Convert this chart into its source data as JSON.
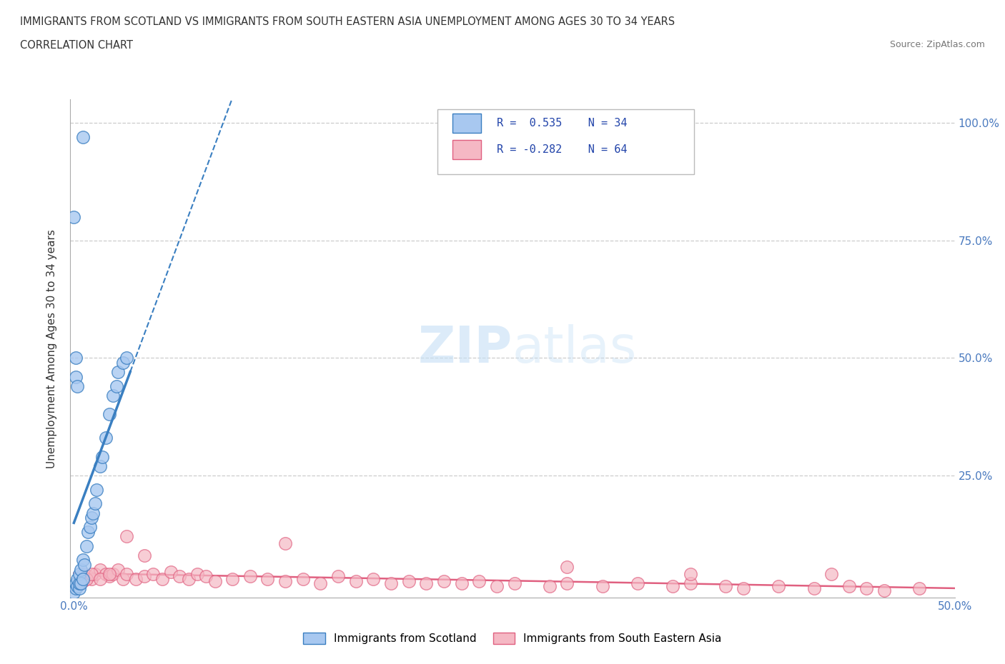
{
  "title_line1": "IMMIGRANTS FROM SCOTLAND VS IMMIGRANTS FROM SOUTH EASTERN ASIA UNEMPLOYMENT AMONG AGES 30 TO 34 YEARS",
  "title_line2": "CORRELATION CHART",
  "source": "Source: ZipAtlas.com",
  "ylabel": "Unemployment Among Ages 30 to 34 years",
  "xlim": [
    -0.002,
    0.5
  ],
  "ylim": [
    -0.01,
    1.05
  ],
  "color_scotland": "#a8c8f0",
  "color_sea": "#f5b8c4",
  "color_scotland_line": "#3a7fc1",
  "color_sea_line": "#e06080",
  "scotland_scatter_x": [
    0.005,
    0.0,
    0.001,
    0.001,
    0.002,
    0.002,
    0.003,
    0.003,
    0.003,
    0.004,
    0.004,
    0.005,
    0.005,
    0.006,
    0.007,
    0.008,
    0.009,
    0.01,
    0.011,
    0.012,
    0.013,
    0.015,
    0.016,
    0.018,
    0.02,
    0.022,
    0.024,
    0.025,
    0.028,
    0.03,
    0.0,
    0.001,
    0.002,
    0.001
  ],
  "scotland_scatter_y": [
    0.97,
    0.0,
    0.01,
    0.02,
    0.015,
    0.03,
    0.01,
    0.02,
    0.04,
    0.02,
    0.05,
    0.03,
    0.07,
    0.06,
    0.1,
    0.13,
    0.14,
    0.16,
    0.17,
    0.19,
    0.22,
    0.27,
    0.29,
    0.33,
    0.38,
    0.42,
    0.44,
    0.47,
    0.49,
    0.5,
    0.8,
    0.46,
    0.44,
    0.5
  ],
  "sea_scatter_x": [
    0.005,
    0.008,
    0.01,
    0.012,
    0.015,
    0.018,
    0.02,
    0.022,
    0.025,
    0.028,
    0.03,
    0.035,
    0.04,
    0.045,
    0.05,
    0.055,
    0.06,
    0.065,
    0.07,
    0.075,
    0.08,
    0.09,
    0.1,
    0.11,
    0.12,
    0.13,
    0.14,
    0.15,
    0.16,
    0.17,
    0.18,
    0.19,
    0.2,
    0.21,
    0.22,
    0.23,
    0.24,
    0.25,
    0.27,
    0.28,
    0.3,
    0.32,
    0.34,
    0.35,
    0.37,
    0.38,
    0.4,
    0.42,
    0.44,
    0.45,
    0.46,
    0.48,
    0.003,
    0.005,
    0.007,
    0.01,
    0.015,
    0.02,
    0.03,
    0.04,
    0.12,
    0.28,
    0.35,
    0.43
  ],
  "sea_scatter_y": [
    0.04,
    0.035,
    0.03,
    0.04,
    0.05,
    0.04,
    0.035,
    0.04,
    0.05,
    0.03,
    0.04,
    0.03,
    0.035,
    0.04,
    0.03,
    0.045,
    0.035,
    0.03,
    0.04,
    0.035,
    0.025,
    0.03,
    0.035,
    0.03,
    0.025,
    0.03,
    0.02,
    0.035,
    0.025,
    0.03,
    0.02,
    0.025,
    0.02,
    0.025,
    0.02,
    0.025,
    0.015,
    0.02,
    0.015,
    0.02,
    0.015,
    0.02,
    0.015,
    0.02,
    0.015,
    0.01,
    0.015,
    0.01,
    0.015,
    0.01,
    0.005,
    0.01,
    0.02,
    0.025,
    0.03,
    0.04,
    0.03,
    0.04,
    0.12,
    0.08,
    0.105,
    0.055,
    0.04,
    0.04
  ]
}
